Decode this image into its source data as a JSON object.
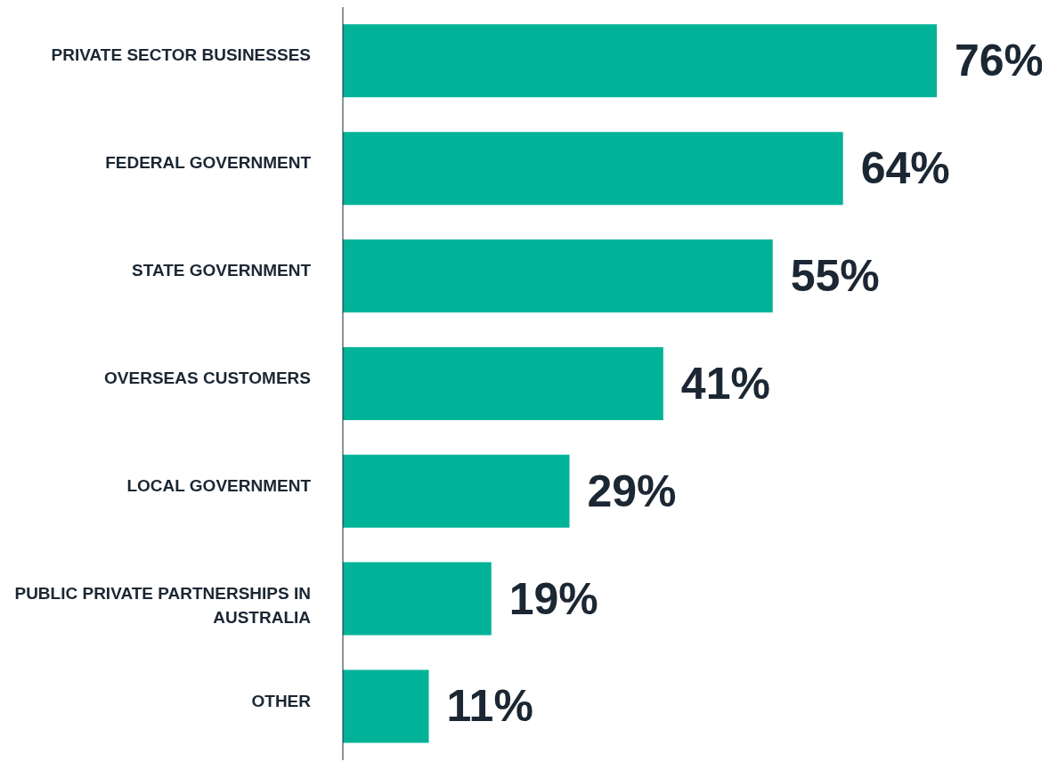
{
  "chart_data": {
    "type": "bar",
    "orientation": "horizontal",
    "categories": [
      "PRIVATE SECTOR BUSINESSES",
      "FEDERAL GOVERNMENT",
      "STATE GOVERNMENT",
      "OVERSEAS CUSTOMERS",
      "LOCAL GOVERNMENT",
      "PUBLIC PRIVATE PARTNERSHIPS IN AUSTRALIA",
      "OTHER"
    ],
    "values": [
      76,
      64,
      55,
      41,
      29,
      19,
      11
    ],
    "value_labels": [
      "76%",
      "64%",
      "55%",
      "41%",
      "29%",
      "19%",
      "11%"
    ],
    "color": "#00b398",
    "tick_labels": "y"
  }
}
